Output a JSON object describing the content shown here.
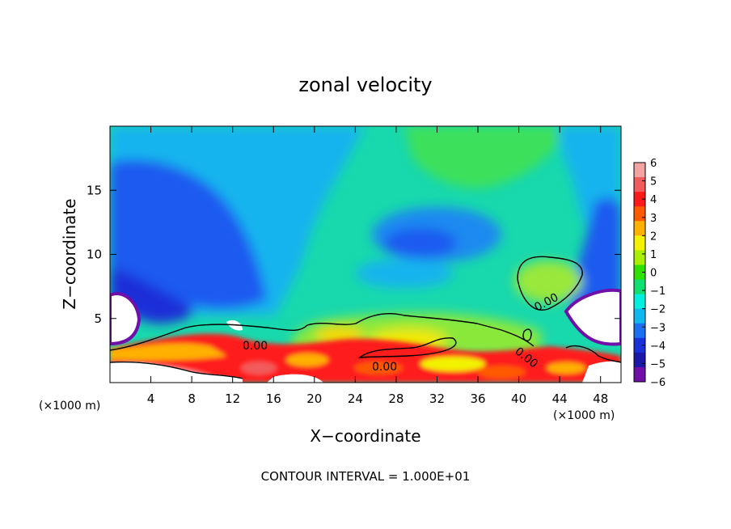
{
  "chart_data": {
    "type": "heatmap",
    "title": "zonal velocity",
    "xlabel": "X−coordinate",
    "ylabel": "Z−coordinate",
    "x_unit_label": "(×1000 m)",
    "y_unit_label": "(×1000 m)",
    "footer": "CONTOUR INTERVAL = 1.000E+01",
    "xlim": [
      0,
      50
    ],
    "ylim": [
      0,
      20
    ],
    "x_ticks": [
      4,
      8,
      12,
      16,
      20,
      24,
      28,
      32,
      36,
      40,
      44,
      48
    ],
    "y_ticks": [
      5,
      10,
      15
    ],
    "colorbar": {
      "ticks": [
        6,
        5,
        4,
        3,
        2,
        1,
        0,
        -1,
        -2,
        -3,
        -4,
        -5,
        -6
      ],
      "tick_labels": [
        "6",
        "5",
        "4",
        "3",
        "2",
        "1",
        "0",
        "−1",
        "−2",
        "−3",
        "−4",
        "−5",
        "−6"
      ],
      "colors": [
        "#f4a3a3",
        "#f25c5c",
        "#ff1a1a",
        "#ff5a00",
        "#ffb000",
        "#f2f200",
        "#a8f000",
        "#30e000",
        "#10e070",
        "#00f0e0",
        "#10b8f0",
        "#1a70f0",
        "#1a30d8",
        "#1c18a8",
        "#7010a8"
      ]
    },
    "contour_labels": [
      "0.00",
      "0.00",
      "0.00",
      "0.00"
    ],
    "grid": false
  }
}
